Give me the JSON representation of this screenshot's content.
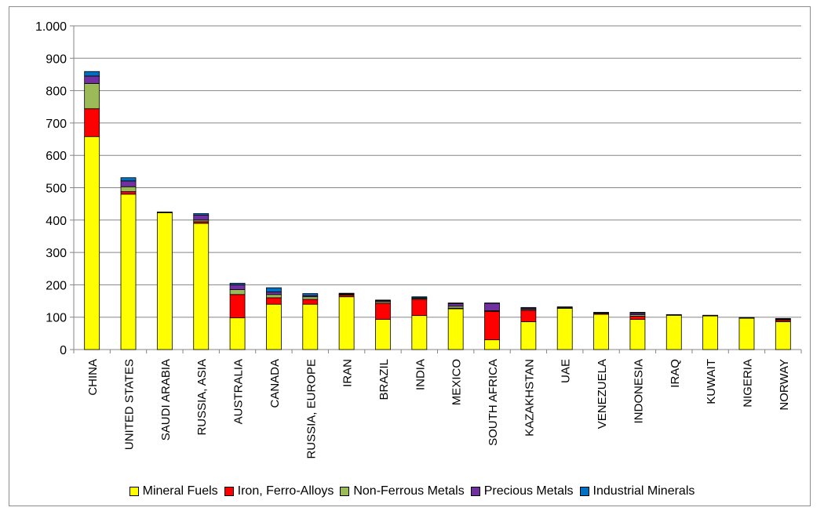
{
  "chart_data": {
    "type": "bar",
    "stacked": true,
    "title": "",
    "xlabel": "",
    "ylabel": "",
    "ylim": [
      0,
      1000
    ],
    "yticks": [
      0,
      100,
      200,
      300,
      400,
      500,
      600,
      700,
      800,
      900,
      1000
    ],
    "ytick_labels": [
      "0",
      "100",
      "200",
      "300",
      "400",
      "500",
      "600",
      "700",
      "800",
      "900",
      "1.000"
    ],
    "grid": true,
    "legend_position": "bottom",
    "categories": [
      "CHINA",
      "UNITED STATES",
      "SAUDI ARABIA",
      "RUSSIA, ASIA",
      "AUSTRALIA",
      "CANADA",
      "RUSSIA, EUROPE",
      "IRAN",
      "BRAZIL",
      "INDIA",
      "MEXICO",
      "SOUTH AFRICA",
      "KAZAKHSTAN",
      "UAE",
      "VENEZUELA",
      "INDONESIA",
      "IRAQ",
      "KUWAIT",
      "NIGERIA",
      "NORWAY"
    ],
    "series": [
      {
        "name": "Mineral Fuels",
        "color": "#ffff00",
        "values": [
          658,
          480,
          423,
          390,
          98,
          140,
          140,
          163,
          93,
          105,
          126,
          30,
          86,
          127,
          109,
          93,
          106,
          104,
          97,
          86
        ]
      },
      {
        "name": "Iron, Ferro-Alloys",
        "color": "#ff0000",
        "values": [
          86,
          8,
          0,
          5,
          72,
          20,
          15,
          5,
          50,
          50,
          2,
          88,
          35,
          0,
          3,
          10,
          0,
          0,
          0,
          5
        ]
      },
      {
        "name": "Non-Ferrous Metals",
        "color": "#9bbb59",
        "values": [
          78,
          15,
          0,
          5,
          15,
          10,
          8,
          2,
          5,
          3,
          6,
          2,
          3,
          3,
          0,
          5,
          1,
          1,
          0,
          2
        ]
      },
      {
        "name": "Precious Metals",
        "color": "#7030a0",
        "values": [
          23,
          18,
          1,
          15,
          15,
          8,
          4,
          2,
          3,
          2,
          8,
          23,
          4,
          0,
          2,
          5,
          0,
          0,
          1,
          2
        ]
      },
      {
        "name": "Industrial Minerals",
        "color": "#0070c0",
        "values": [
          14,
          10,
          1,
          5,
          5,
          13,
          6,
          2,
          2,
          3,
          2,
          1,
          2,
          2,
          1,
          2,
          1,
          1,
          1,
          1
        ]
      }
    ]
  }
}
